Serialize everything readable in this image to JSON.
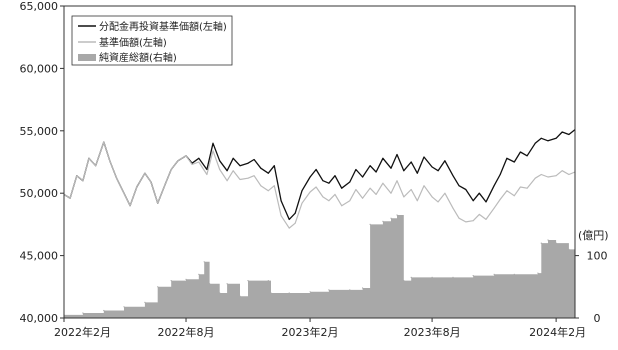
{
  "chart_data": {
    "type": "line",
    "left_axis": {
      "ylim": [
        40000,
        65000
      ],
      "ticks": [
        40000,
        45000,
        50000,
        55000,
        60000,
        65000
      ],
      "tick_labels": [
        "40,000",
        "45,000",
        "50,000",
        "55,000",
        "60,000",
        "65,000"
      ]
    },
    "right_axis": {
      "unit_label": "(億円)",
      "ylim": [
        0,
        500
      ],
      "ticks": [
        0,
        100
      ],
      "tick_labels": [
        "0",
        "100"
      ]
    },
    "x_axis": {
      "range": [
        "2022-02-01",
        "2024-02-29"
      ],
      "ticks": [
        "2022-02-01",
        "2022-08-01",
        "2023-02-01",
        "2023-08-01",
        "2024-02-01"
      ],
      "tick_labels": [
        "2022年2月",
        "2022年8月",
        "2023年2月",
        "2023年8月",
        "2024年2月"
      ]
    },
    "legend_position": "top-left",
    "grid": false,
    "series": [
      {
        "name": "分配金再投資基準価額(左軸)",
        "axis": "left",
        "kind": "line",
        "color": "#111111",
        "points": [
          [
            "2022-02-01",
            49900
          ],
          [
            "2022-02-10",
            49600
          ],
          [
            "2022-02-20",
            51400
          ],
          [
            "2022-03-01",
            51000
          ],
          [
            "2022-03-10",
            52800
          ],
          [
            "2022-03-20",
            52200
          ],
          [
            "2022-04-01",
            54100
          ],
          [
            "2022-04-10",
            52600
          ],
          [
            "2022-04-20",
            51200
          ],
          [
            "2022-05-01",
            50000
          ],
          [
            "2022-05-10",
            49000
          ],
          [
            "2022-05-20",
            50500
          ],
          [
            "2022-06-01",
            51600
          ],
          [
            "2022-06-10",
            50900
          ],
          [
            "2022-06-20",
            49200
          ],
          [
            "2022-07-01",
            50700
          ],
          [
            "2022-07-10",
            51900
          ],
          [
            "2022-07-20",
            52600
          ],
          [
            "2022-08-01",
            53000
          ],
          [
            "2022-08-10",
            52400
          ],
          [
            "2022-08-20",
            52800
          ],
          [
            "2022-09-01",
            51900
          ],
          [
            "2022-09-10",
            54000
          ],
          [
            "2022-09-20",
            52600
          ],
          [
            "2022-10-01",
            51800
          ],
          [
            "2022-10-10",
            52800
          ],
          [
            "2022-10-20",
            52200
          ],
          [
            "2022-11-01",
            52400
          ],
          [
            "2022-11-10",
            52700
          ],
          [
            "2022-11-20",
            52000
          ],
          [
            "2022-12-01",
            51600
          ],
          [
            "2022-12-10",
            52200
          ],
          [
            "2022-12-20",
            49400
          ],
          [
            "2023-01-01",
            47900
          ],
          [
            "2023-01-10",
            48400
          ],
          [
            "2023-01-20",
            50200
          ],
          [
            "2023-02-01",
            51300
          ],
          [
            "2023-02-10",
            51900
          ],
          [
            "2023-02-20",
            51000
          ],
          [
            "2023-03-01",
            50800
          ],
          [
            "2023-03-10",
            51400
          ],
          [
            "2023-03-20",
            50400
          ],
          [
            "2023-04-01",
            50900
          ],
          [
            "2023-04-10",
            51900
          ],
          [
            "2023-04-20",
            51300
          ],
          [
            "2023-05-01",
            52200
          ],
          [
            "2023-05-10",
            51700
          ],
          [
            "2023-05-20",
            52800
          ],
          [
            "2023-06-01",
            52000
          ],
          [
            "2023-06-10",
            53100
          ],
          [
            "2023-06-20",
            51800
          ],
          [
            "2023-07-01",
            52500
          ],
          [
            "2023-07-10",
            51600
          ],
          [
            "2023-07-20",
            52900
          ],
          [
            "2023-08-01",
            52100
          ],
          [
            "2023-08-10",
            51800
          ],
          [
            "2023-08-20",
            52600
          ],
          [
            "2023-09-01",
            51400
          ],
          [
            "2023-09-10",
            50600
          ],
          [
            "2023-09-20",
            50300
          ],
          [
            "2023-10-01",
            49400
          ],
          [
            "2023-10-10",
            50000
          ],
          [
            "2023-10-20",
            49300
          ],
          [
            "2023-11-01",
            50600
          ],
          [
            "2023-11-10",
            51500
          ],
          [
            "2023-11-20",
            52800
          ],
          [
            "2023-12-01",
            52500
          ],
          [
            "2023-12-10",
            53300
          ],
          [
            "2023-12-20",
            53000
          ],
          [
            "2024-01-01",
            54000
          ],
          [
            "2024-01-10",
            54400
          ],
          [
            "2024-01-20",
            54200
          ],
          [
            "2024-02-01",
            54400
          ],
          [
            "2024-02-10",
            54900
          ],
          [
            "2024-02-20",
            54700
          ],
          [
            "2024-02-29",
            55100
          ]
        ]
      },
      {
        "name": "基準価額(左軸)",
        "axis": "left",
        "kind": "line",
        "color": "#bbbbbb",
        "points": [
          [
            "2022-02-01",
            49900
          ],
          [
            "2022-02-10",
            49600
          ],
          [
            "2022-02-20",
            51400
          ],
          [
            "2022-03-01",
            51000
          ],
          [
            "2022-03-10",
            52800
          ],
          [
            "2022-03-20",
            52200
          ],
          [
            "2022-04-01",
            54100
          ],
          [
            "2022-04-10",
            52600
          ],
          [
            "2022-04-20",
            51200
          ],
          [
            "2022-05-01",
            50000
          ],
          [
            "2022-05-10",
            49000
          ],
          [
            "2022-05-20",
            50500
          ],
          [
            "2022-06-01",
            51600
          ],
          [
            "2022-06-10",
            50900
          ],
          [
            "2022-06-20",
            49200
          ],
          [
            "2022-07-01",
            50700
          ],
          [
            "2022-07-10",
            51900
          ],
          [
            "2022-07-20",
            52600
          ],
          [
            "2022-08-01",
            53000
          ],
          [
            "2022-08-10",
            52300
          ],
          [
            "2022-08-20",
            52500
          ],
          [
            "2022-09-01",
            51500
          ],
          [
            "2022-09-10",
            53400
          ],
          [
            "2022-09-20",
            51900
          ],
          [
            "2022-10-01",
            51000
          ],
          [
            "2022-10-10",
            51800
          ],
          [
            "2022-10-20",
            51100
          ],
          [
            "2022-11-01",
            51200
          ],
          [
            "2022-11-10",
            51400
          ],
          [
            "2022-11-20",
            50600
          ],
          [
            "2022-12-01",
            50200
          ],
          [
            "2022-12-10",
            50600
          ],
          [
            "2022-12-20",
            48200
          ],
          [
            "2023-01-01",
            47200
          ],
          [
            "2023-01-10",
            47600
          ],
          [
            "2023-01-20",
            49200
          ],
          [
            "2023-02-01",
            50100
          ],
          [
            "2023-02-10",
            50500
          ],
          [
            "2023-02-20",
            49700
          ],
          [
            "2023-03-01",
            49400
          ],
          [
            "2023-03-10",
            49900
          ],
          [
            "2023-03-20",
            49000
          ],
          [
            "2023-04-01",
            49400
          ],
          [
            "2023-04-10",
            50300
          ],
          [
            "2023-04-20",
            49600
          ],
          [
            "2023-05-01",
            50400
          ],
          [
            "2023-05-10",
            49900
          ],
          [
            "2023-05-20",
            50800
          ],
          [
            "2023-06-01",
            50000
          ],
          [
            "2023-06-10",
            51000
          ],
          [
            "2023-06-20",
            49700
          ],
          [
            "2023-07-01",
            50300
          ],
          [
            "2023-07-10",
            49400
          ],
          [
            "2023-07-20",
            50600
          ],
          [
            "2023-08-01",
            49700
          ],
          [
            "2023-08-10",
            49300
          ],
          [
            "2023-08-20",
            50000
          ],
          [
            "2023-09-01",
            48800
          ],
          [
            "2023-09-10",
            48000
          ],
          [
            "2023-09-20",
            47700
          ],
          [
            "2023-10-01",
            47800
          ],
          [
            "2023-10-10",
            48300
          ],
          [
            "2023-10-20",
            47900
          ],
          [
            "2023-11-01",
            48800
          ],
          [
            "2023-11-10",
            49500
          ],
          [
            "2023-11-20",
            50200
          ],
          [
            "2023-12-01",
            49800
          ],
          [
            "2023-12-10",
            50500
          ],
          [
            "2023-12-20",
            50400
          ],
          [
            "2024-01-01",
            51200
          ],
          [
            "2024-01-10",
            51500
          ],
          [
            "2024-01-20",
            51300
          ],
          [
            "2024-02-01",
            51400
          ],
          [
            "2024-02-10",
            51800
          ],
          [
            "2024-02-20",
            51500
          ],
          [
            "2024-02-29",
            51700
          ]
        ]
      },
      {
        "name": "純資産総額(右軸)",
        "axis": "right",
        "kind": "area",
        "color": "#a8a8a8",
        "points": [
          [
            "2022-02-01",
            5
          ],
          [
            "2022-03-01",
            8
          ],
          [
            "2022-04-01",
            12
          ],
          [
            "2022-05-01",
            18
          ],
          [
            "2022-06-01",
            25
          ],
          [
            "2022-06-20",
            50
          ],
          [
            "2022-07-10",
            60
          ],
          [
            "2022-08-01",
            62
          ],
          [
            "2022-08-20",
            70
          ],
          [
            "2022-08-28",
            90
          ],
          [
            "2022-09-05",
            55
          ],
          [
            "2022-09-20",
            40
          ],
          [
            "2022-10-01",
            55
          ],
          [
            "2022-10-20",
            35
          ],
          [
            "2022-11-01",
            60
          ],
          [
            "2022-12-01",
            60
          ],
          [
            "2022-12-05",
            40
          ],
          [
            "2023-01-01",
            40
          ],
          [
            "2023-02-01",
            42
          ],
          [
            "2023-03-01",
            45
          ],
          [
            "2023-04-01",
            45
          ],
          [
            "2023-04-20",
            48
          ],
          [
            "2023-05-01",
            150
          ],
          [
            "2023-05-20",
            155
          ],
          [
            "2023-06-01",
            160
          ],
          [
            "2023-06-10",
            165
          ],
          [
            "2023-06-20",
            60
          ],
          [
            "2023-07-01",
            65
          ],
          [
            "2023-08-01",
            65
          ],
          [
            "2023-09-01",
            65
          ],
          [
            "2023-10-01",
            68
          ],
          [
            "2023-11-01",
            70
          ],
          [
            "2023-12-01",
            70
          ],
          [
            "2024-01-05",
            72
          ],
          [
            "2024-01-10",
            120
          ],
          [
            "2024-01-20",
            125
          ],
          [
            "2024-02-01",
            120
          ],
          [
            "2024-02-20",
            110
          ],
          [
            "2024-02-29",
            100
          ]
        ]
      }
    ]
  }
}
